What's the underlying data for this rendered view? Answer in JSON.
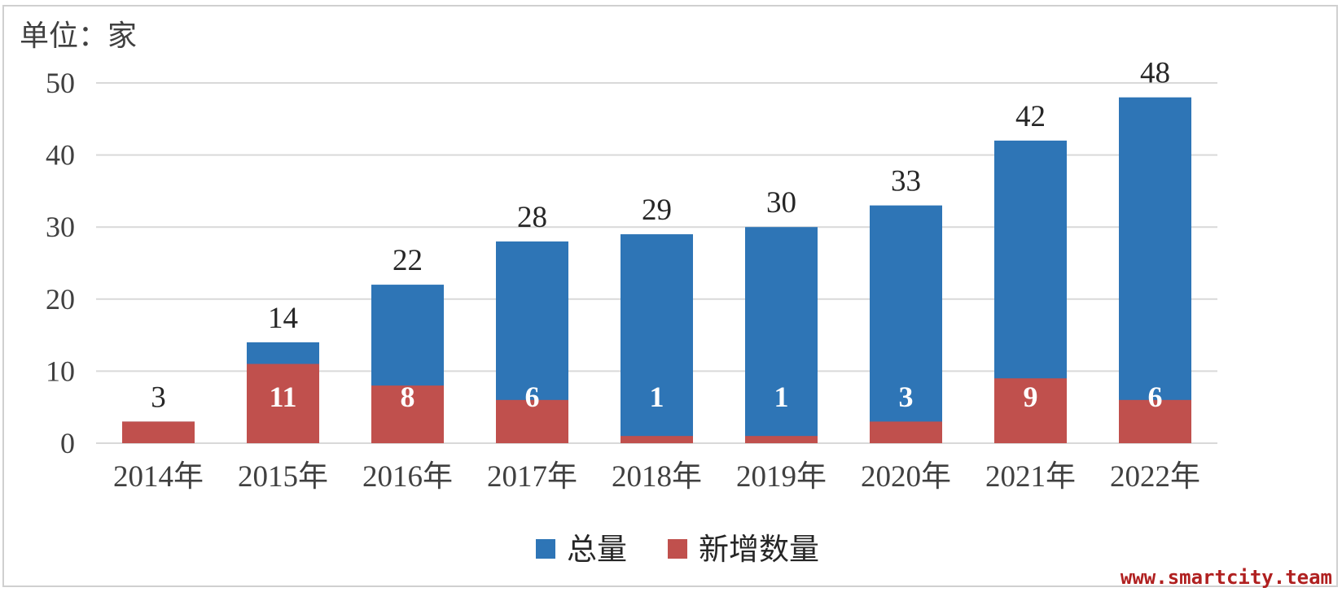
{
  "chart_data": {
    "type": "bar",
    "stacked": true,
    "unit_label": "单位：家",
    "categories": [
      "2014年",
      "2015年",
      "2016年",
      "2017年",
      "2018年",
      "2019年",
      "2020年",
      "2021年",
      "2022年"
    ],
    "series": [
      {
        "name": "新增数量",
        "color": "#C0504D",
        "values": [
          3,
          11,
          8,
          6,
          1,
          1,
          3,
          9,
          6
        ]
      },
      {
        "name": "总量",
        "color": "#2E75B6",
        "values": [
          3,
          14,
          22,
          28,
          29,
          30,
          33,
          42,
          48
        ]
      }
    ],
    "new_value_labels": [
      "",
      "11",
      "8",
      "6",
      "1",
      "1",
      "3",
      "9",
      "6"
    ],
    "total_value_labels": [
      "3",
      "14",
      "22",
      "28",
      "29",
      "30",
      "33",
      "42",
      "48"
    ],
    "yticks": [
      0,
      10,
      20,
      30,
      40,
      50
    ],
    "ylim": [
      0,
      50
    ],
    "grid": true,
    "legend": {
      "position": "bottom",
      "items": [
        "总量",
        "新增数量"
      ]
    }
  },
  "watermark": "www.smartcity.team"
}
